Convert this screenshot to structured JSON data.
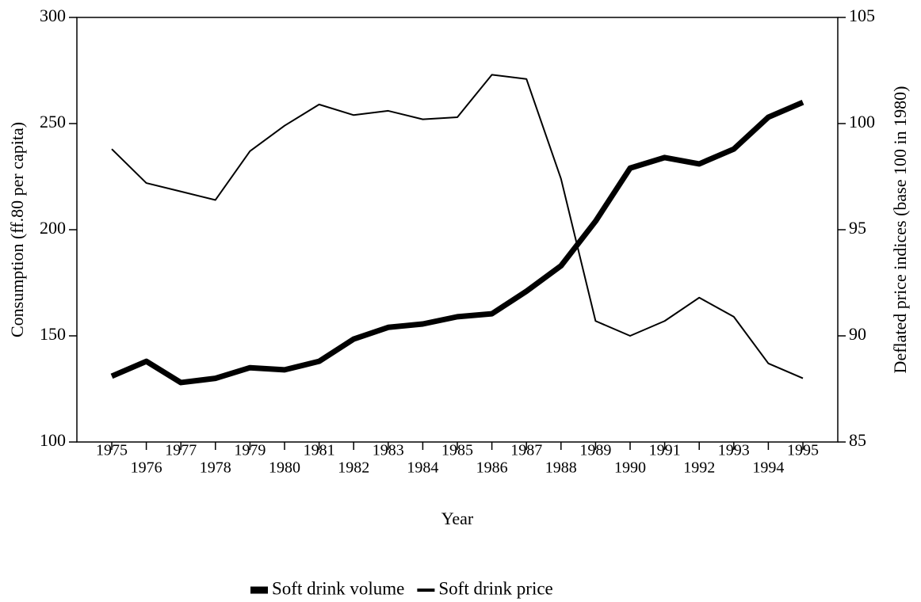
{
  "chart_data": {
    "type": "line",
    "x_label": "Year",
    "y_label": "Consumption (ff.80 per capita)",
    "y2_label": "Deflated price indices (base 100 in 1980)",
    "categories": [
      "1975",
      "1976",
      "1977",
      "1978",
      "1979",
      "1980",
      "1981",
      "1982",
      "1983",
      "1984",
      "1985",
      "1986",
      "1987",
      "1988",
      "1989",
      "1990",
      "1991",
      "1992",
      "1993",
      "1994",
      "1995"
    ],
    "ylim": [
      100,
      300
    ],
    "yticks": [
      100,
      150,
      200,
      250,
      300
    ],
    "y2lim": [
      85,
      105
    ],
    "y2ticks": [
      85,
      90,
      95,
      100,
      105
    ],
    "legend": "bottom",
    "series": [
      {
        "name": "Soft drink volume",
        "color": "#000000",
        "width": 7,
        "values": [
          131,
          138,
          128,
          130,
          135,
          134,
          138,
          148.5,
          154,
          155.6,
          159,
          160.4,
          171,
          183,
          204,
          229,
          234,
          231,
          238,
          253,
          260
        ]
      },
      {
        "name": "Soft drink price",
        "color": "#000000",
        "width": 2,
        "axis": "y2",
        "values": [
          98.8,
          97.2,
          96.8,
          96.4,
          98.7,
          99.9,
          100.9,
          100.4,
          100.6,
          100.2,
          100.3,
          102.3,
          102.1,
          97.4,
          90.7,
          90.0,
          90.7,
          91.8,
          90.9,
          88.7,
          88.0
        ]
      }
    ]
  }
}
